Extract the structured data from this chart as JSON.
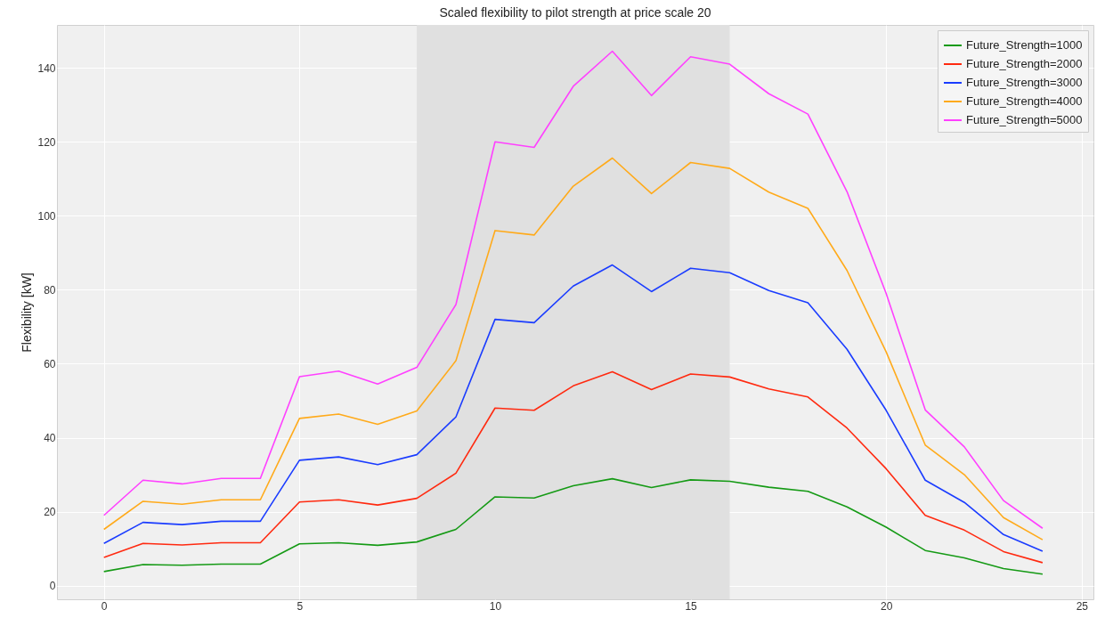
{
  "chart_data": {
    "type": "line",
    "title": "Scaled flexibility to pilot strength at price scale 20",
    "ylabel": "Flexibility [kW]",
    "x": [
      0,
      1,
      2,
      3,
      4,
      5,
      6,
      7,
      8,
      9,
      10,
      11,
      12,
      13,
      14,
      15,
      16,
      17,
      18,
      19,
      20,
      21,
      22,
      23,
      24
    ],
    "series": [
      {
        "name": "Future_Strength=1000",
        "color": "#159a15",
        "values": [
          3.8,
          5.7,
          5.5,
          5.8,
          5.8,
          11.3,
          11.6,
          10.9,
          11.8,
          15.2,
          24.0,
          23.7,
          27.0,
          28.9,
          26.5,
          28.6,
          28.2,
          26.6,
          25.5,
          21.3,
          15.8,
          9.5,
          7.5,
          4.6,
          3.1
        ]
      },
      {
        "name": "Future_Strength=2000",
        "color": "#ff2a10",
        "values": [
          7.6,
          11.4,
          11.0,
          11.6,
          11.6,
          22.6,
          23.2,
          21.8,
          23.6,
          30.4,
          48.0,
          47.4,
          54.0,
          57.8,
          53.0,
          57.2,
          56.4,
          53.2,
          51.0,
          42.6,
          31.6,
          19.0,
          15.0,
          9.2,
          6.2
        ]
      },
      {
        "name": "Future_Strength=3000",
        "color": "#1a3cff",
        "values": [
          11.4,
          17.1,
          16.5,
          17.4,
          17.4,
          33.9,
          34.8,
          32.7,
          35.4,
          45.6,
          72.0,
          71.1,
          81.0,
          86.7,
          79.5,
          85.8,
          84.6,
          79.8,
          76.5,
          63.9,
          47.4,
          28.5,
          22.5,
          13.8,
          9.3
        ]
      },
      {
        "name": "Future_Strength=4000",
        "color": "#ffaa1a",
        "values": [
          15.2,
          22.8,
          22.0,
          23.2,
          23.2,
          45.2,
          46.4,
          43.6,
          47.2,
          60.8,
          96.0,
          94.8,
          108.0,
          115.6,
          106.0,
          114.4,
          112.8,
          106.4,
          102.0,
          85.2,
          63.2,
          38.0,
          30.0,
          18.4,
          12.4
        ]
      },
      {
        "name": "Future_Strength=5000",
        "color": "#ff40ff",
        "values": [
          19.0,
          28.5,
          27.5,
          29.0,
          29.0,
          56.5,
          58.0,
          54.5,
          59.0,
          76.0,
          120.0,
          118.5,
          135.0,
          144.5,
          132.5,
          143.0,
          141.0,
          133.0,
          127.5,
          106.5,
          79.0,
          47.5,
          37.5,
          23.0,
          15.5
        ]
      }
    ],
    "bands": [
      {
        "axis": "x",
        "from": 8,
        "to": 16,
        "color": "#e0e0e0"
      }
    ],
    "xlim": [
      -1.2,
      25.3
    ],
    "ylim": [
      -3.7,
      151.6
    ],
    "xticks": [
      0,
      5,
      10,
      15,
      20,
      25
    ],
    "yticks": [
      0,
      20,
      40,
      60,
      80,
      100,
      120,
      140
    ],
    "grid": true,
    "legend": "top right",
    "line_style": "solid"
  }
}
